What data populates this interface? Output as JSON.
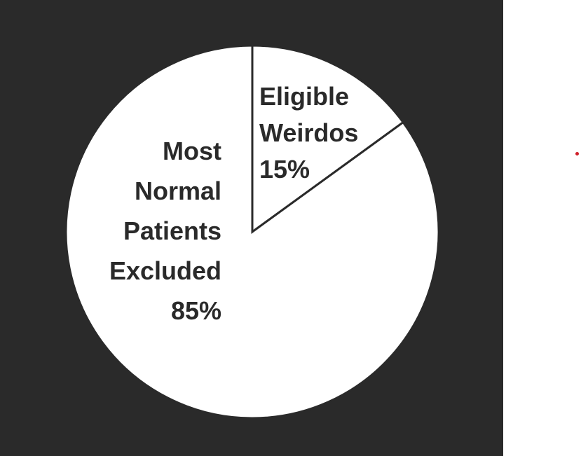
{
  "chart_data": {
    "type": "pie",
    "title": "",
    "slices": [
      {
        "label_lines": [
          "Eligible",
          "Weirdos"
        ],
        "value": 15,
        "value_label": "15%"
      },
      {
        "label_lines": [
          "Most",
          "Normal",
          "Patients",
          "Excluded"
        ],
        "value": 85,
        "value_label": "85%"
      }
    ],
    "start_angle_deg": 0,
    "direction": "clockwise",
    "legend": "none",
    "colors": {
      "slice_fill": "#ffffff",
      "slice_stroke": "#2a2a2a",
      "label_text": "#2a2a2a",
      "background": "#2a2a2a",
      "page": "#ffffff",
      "marker": "#d0202a"
    }
  }
}
